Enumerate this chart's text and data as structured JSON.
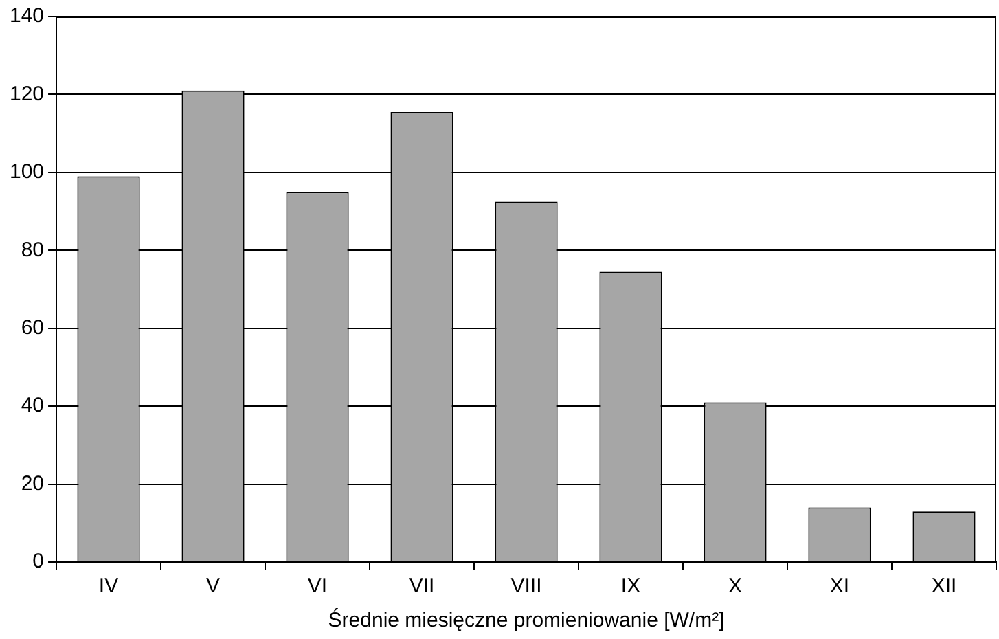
{
  "chart_data": {
    "type": "bar",
    "xlabel": "Średnie miesięczne promieniowanie [W/m²]",
    "categories": [
      "IV",
      "V",
      "VI",
      "VII",
      "VIII",
      "IX",
      "X",
      "XI",
      "XII"
    ],
    "values": [
      99,
      121,
      95,
      115.5,
      92.5,
      74.5,
      41,
      14,
      13
    ],
    "color": "#a6a6a6",
    "ylim": [
      0,
      140
    ],
    "yticks": [
      0,
      20,
      40,
      60,
      80,
      100,
      120,
      140
    ],
    "grid": "y"
  }
}
